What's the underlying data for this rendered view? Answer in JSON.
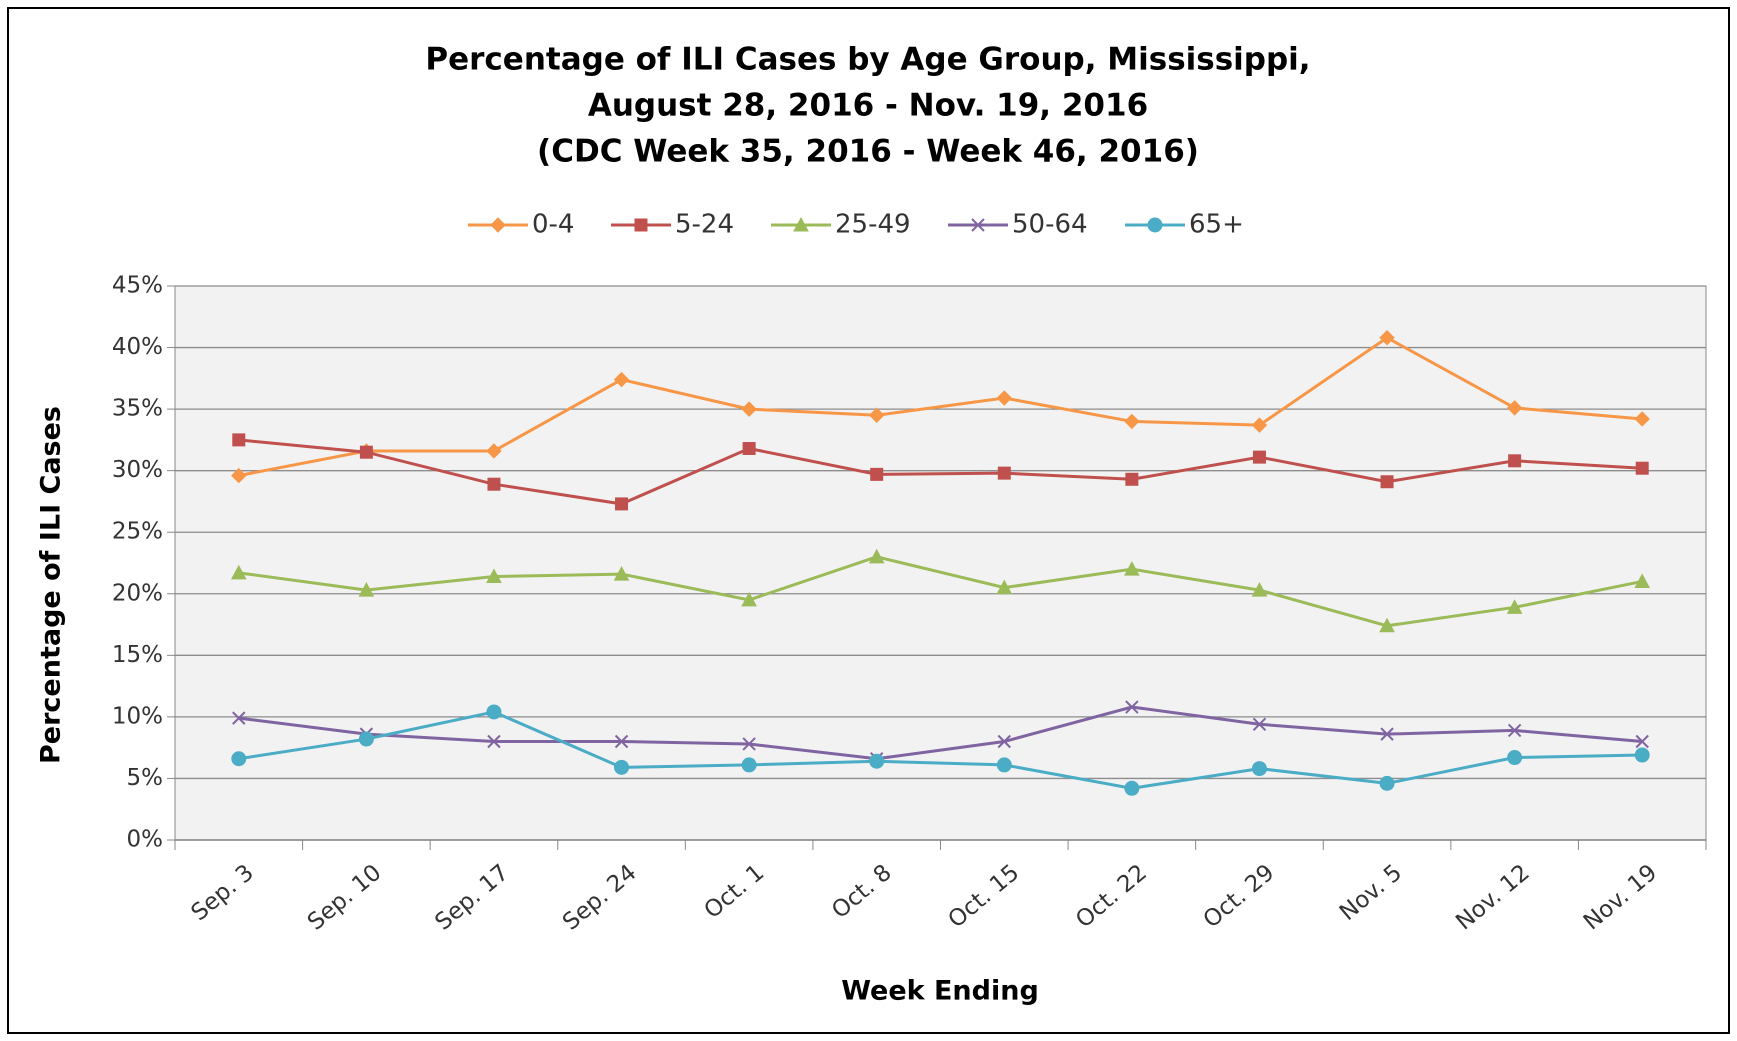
{
  "chart_data": {
    "type": "line",
    "title": [
      "Percentage of ILI Cases by Age Group, Mississippi,",
      "August 28, 2016 - Nov. 19, 2016",
      "(CDC Week 35, 2016 - Week 46, 2016)"
    ],
    "x_label": "Week Ending",
    "y_label": "Percentage of ILI Cases",
    "categories": [
      "Sep. 3",
      "Sep. 10",
      "Sep. 17",
      "Sep. 24",
      "Oct. 1",
      "Oct. 8",
      "Oct. 15",
      "Oct. 22",
      "Oct. 29",
      "Nov. 5",
      "Nov. 12",
      "Nov. 19"
    ],
    "series": [
      {
        "name": "0-4",
        "color": "#f79646",
        "marker": "diamond",
        "values": [
          29.6,
          31.6,
          31.6,
          37.4,
          35.0,
          34.5,
          35.9,
          34.0,
          33.7,
          40.8,
          35.1,
          34.2
        ]
      },
      {
        "name": "5-24",
        "color": "#c0504d",
        "marker": "square",
        "values": [
          32.5,
          31.5,
          28.9,
          27.3,
          31.8,
          29.7,
          29.8,
          29.3,
          31.1,
          29.1,
          30.8,
          30.2
        ]
      },
      {
        "name": "25-49",
        "color": "#9bbb59",
        "marker": "triangle",
        "values": [
          21.7,
          20.3,
          21.4,
          21.6,
          19.5,
          23.0,
          20.5,
          22.0,
          20.3,
          17.4,
          18.9,
          21.0
        ]
      },
      {
        "name": "50-64",
        "color": "#8064a2",
        "marker": "x",
        "values": [
          9.9,
          8.6,
          8.0,
          8.0,
          7.8,
          6.6,
          8.0,
          10.8,
          9.4,
          8.6,
          8.9,
          8.0
        ]
      },
      {
        "name": "65+",
        "color": "#4bacc6",
        "marker": "circle",
        "values": [
          6.6,
          8.2,
          10.4,
          5.9,
          6.1,
          6.4,
          6.1,
          4.2,
          5.8,
          4.6,
          6.7,
          6.9
        ]
      }
    ],
    "ylim": [
      0,
      45
    ],
    "yticks": [
      {
        "value": 0,
        "label": "0%"
      },
      {
        "value": 5,
        "label": "5%"
      },
      {
        "value": 10,
        "label": "10%"
      },
      {
        "value": 15,
        "label": "15%"
      },
      {
        "value": 20,
        "label": "20%"
      },
      {
        "value": 25,
        "label": "25%"
      },
      {
        "value": 30,
        "label": "30%"
      },
      {
        "value": 35,
        "label": "35%"
      },
      {
        "value": 40,
        "label": "40%"
      },
      {
        "value": 45,
        "label": "45%"
      }
    ],
    "grid": true,
    "legend": "top"
  }
}
